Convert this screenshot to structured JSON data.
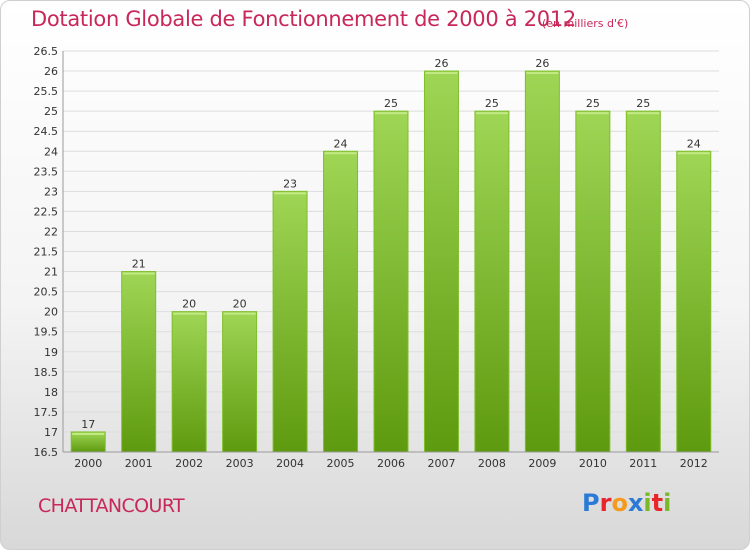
{
  "header": {
    "title": "Dotation Globale de Fonctionnement de 2000 à 2012",
    "unit": "(en milliers d'€)"
  },
  "footer": {
    "commune": "CHATTANCOURT",
    "logo": "Proxiti",
    "logo_colors": [
      "#2b7bd6",
      "#e8262a",
      "#f39a1f",
      "#2b7bd6",
      "#7ab829",
      "#e8262a",
      "#7ab829"
    ]
  },
  "colors": {
    "bar_top": "#9fd655",
    "bar_bottom": "#5e9a0f",
    "title": "#c8275a",
    "grid": "#dddddd",
    "axis_text": "#333333"
  },
  "chart_data": {
    "type": "bar",
    "title": "Dotation Globale de Fonctionnement de 2000 à 2012",
    "categories": [
      "2000",
      "2001",
      "2002",
      "2003",
      "2004",
      "2005",
      "2006",
      "2007",
      "2008",
      "2009",
      "2010",
      "2011",
      "2012"
    ],
    "values": [
      17,
      21,
      20,
      20,
      23,
      24,
      25,
      26,
      25,
      26,
      25,
      25,
      24
    ],
    "ylim": [
      16.5,
      26.5
    ],
    "yticks": [
      "16.5",
      "17",
      "17.5",
      "18",
      "18.5",
      "19",
      "19.5",
      "20",
      "20.5",
      "21",
      "21.5",
      "22",
      "22.5",
      "23",
      "23.5",
      "24",
      "24.5",
      "25",
      "25.5",
      "26",
      "26.5"
    ],
    "grid": true,
    "xlabel": "",
    "ylabel": ""
  }
}
